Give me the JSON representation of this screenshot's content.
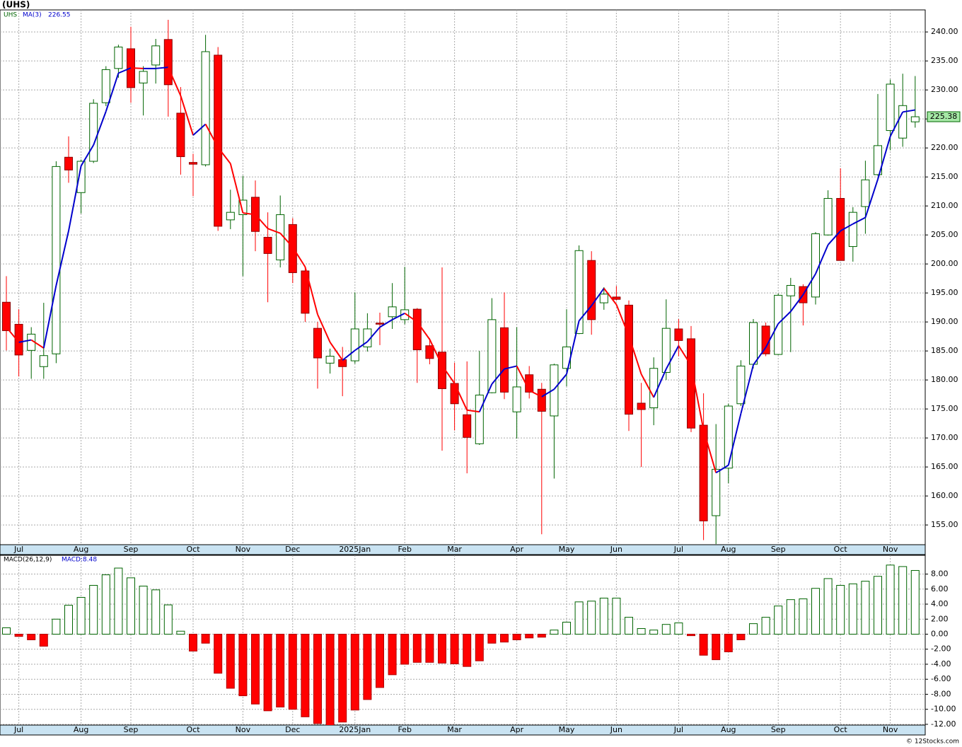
{
  "chart_data": [
    {
      "type": "candlestick",
      "title": "(UHS)",
      "categories": [
        null,
        "Jul",
        null,
        null,
        null,
        null,
        "Aug",
        null,
        null,
        null,
        "Sep",
        null,
        null,
        null,
        null,
        "Oct",
        null,
        null,
        null,
        "Nov",
        null,
        null,
        null,
        "Dec",
        null,
        null,
        null,
        null,
        "2025Jan",
        null,
        null,
        null,
        "Feb",
        null,
        null,
        null,
        "Mar",
        null,
        null,
        null,
        null,
        "Apr",
        null,
        null,
        null,
        "May",
        null,
        null,
        null,
        "Jun",
        null,
        null,
        null,
        null,
        "Jul",
        null,
        null,
        null,
        "Aug",
        null,
        null,
        null,
        "Sep",
        null,
        null,
        null,
        null,
        "Oct",
        null,
        null,
        null,
        "Nov",
        null,
        null
      ],
      "series": [
        {
          "name": "UHS",
          "up_color": "#006400",
          "down_color": "#ff0000",
          "open": [
            193.4,
            189.6,
            185.1,
            182.3,
            184.5,
            218.4,
            212.3,
            217.7,
            227.8,
            233.7,
            237.1,
            231.2,
            234.3,
            238.7,
            226,
            217.5,
            217.1,
            236,
            207.6,
            208.5,
            211.5,
            204.6,
            200.7,
            206.8,
            198.8,
            188.9,
            182.9,
            183.5,
            183.3,
            185.7,
            189.8,
            190.9,
            190.4,
            192.2,
            185.9,
            184.8,
            179.4,
            174,
            169,
            177.8,
            189,
            174.5,
            180.9,
            178.4,
            173.8,
            182,
            188,
            200.6,
            193.3,
            194.3,
            192.9,
            176,
            175.2,
            181.3,
            188.8,
            187.1,
            172.2,
            156.6,
            164.8,
            175.9,
            182.7,
            189.3,
            184.4,
            194.5,
            196.1,
            194.3,
            205,
            211.3,
            203,
            209.9,
            215.4,
            223,
            221.7,
            224.5
          ],
          "high": [
            197.9,
            192.2,
            189.1,
            193.3,
            217.7,
            222,
            218,
            228.4,
            234.1,
            237.8,
            240.9,
            234.1,
            238.8,
            242.1,
            230.5,
            219,
            239.5,
            237.4,
            212.8,
            215.2,
            214.4,
            208.9,
            211.8,
            207.9,
            199.5,
            190,
            185.4,
            185.7,
            195.1,
            191.5,
            191.6,
            196.7,
            199.5,
            192.4,
            187.2,
            199.4,
            183,
            183.2,
            185,
            194.1,
            195.1,
            189.1,
            182.4,
            179.5,
            182.8,
            192.2,
            203.2,
            202.2,
            196,
            196.2,
            193.7,
            179.5,
            183.9,
            193.9,
            190.5,
            189.3,
            177.7,
            172.4,
            175.9,
            183.4,
            190.5,
            189.9,
            194.9,
            197.6,
            196.5,
            205.5,
            212.7,
            216.5,
            209.8,
            217.8,
            229.3,
            231.8,
            232.8,
            232.4
          ],
          "low": [
            185.1,
            180.6,
            180.2,
            180.2,
            182.9,
            214,
            208.7,
            217.4,
            227.2,
            232.1,
            227.8,
            225.6,
            231.1,
            225.4,
            215.4,
            211.7,
            216.8,
            205.7,
            206,
            197.9,
            202.2,
            193.4,
            199.4,
            196.7,
            190,
            178.5,
            181.1,
            177.2,
            182.8,
            184.9,
            186,
            188.8,
            189.6,
            179.5,
            182.7,
            167.8,
            171.3,
            163.9,
            168.8,
            177.7,
            176.7,
            169.9,
            176.8,
            153.4,
            163,
            178.9,
            187.9,
            187.8,
            192.1,
            193.7,
            171.2,
            165,
            172.2,
            180,
            184.1,
            171,
            152.4,
            151.7,
            162.2,
            175.5,
            182,
            184.1,
            184.3,
            184.8,
            189.4,
            193,
            204.9,
            200.6,
            200.4,
            205.2,
            215.2,
            219.6,
            220.2,
            223.5
          ],
          "close": [
            188.5,
            184.3,
            187.9,
            184.2,
            216.8,
            216.2,
            217.7,
            227.7,
            233.5,
            237.4,
            230.4,
            233.2,
            237.6,
            230.9,
            218.5,
            217.2,
            236.6,
            206.5,
            208.9,
            211,
            205.6,
            201.8,
            208.5,
            198.5,
            191.5,
            183.8,
            184.1,
            182.3,
            188.8,
            188.8,
            189.7,
            192.6,
            192.1,
            185.2,
            183.7,
            178.5,
            175.9,
            170.1,
            177.4,
            190.4,
            177.9,
            178.8,
            177.9,
            174.6,
            182.6,
            185.7,
            202.3,
            190.4,
            194.8,
            193.9,
            174.1,
            174.9,
            182,
            188.9,
            186.8,
            171.7,
            155.7,
            164.6,
            175.5,
            182.4,
            189.9,
            184.5,
            194.6,
            196.3,
            193.3,
            205.2,
            211.3,
            200.6,
            208.9,
            214.5,
            220.4,
            231,
            227.3,
            225.38
          ]
        }
      ],
      "ma": {
        "name": "MA(3)",
        "up_color": "#0000cc",
        "down_color": "#ff0000",
        "values": [
          189.1,
          186.5,
          186.9,
          185.5,
          196.3,
          205.7,
          216.9,
          220.5,
          226.3,
          232.9,
          233.8,
          233.7,
          233.7,
          233.9,
          229,
          222.2,
          224.1,
          220.1,
          217.3,
          208.8,
          208.5,
          206.1,
          205.3,
          202.9,
          199.5,
          191.3,
          186.5,
          183.4,
          185.1,
          186.6,
          189.1,
          190.4,
          191.5,
          190,
          187,
          182.5,
          179.4,
          174.8,
          174.5,
          179.3,
          181.9,
          182.4,
          178.2,
          177.1,
          178.4,
          181,
          190.2,
          192.8,
          195.8,
          193,
          187.6,
          181,
          177,
          181.9,
          185.9,
          182.5,
          171.4,
          164,
          165.3,
          174.2,
          182.6,
          185.6,
          189.7,
          191.8,
          194.7,
          198.3,
          203.3,
          205.7,
          206.9,
          208,
          214.6,
          222,
          226.2,
          226.55
        ]
      },
      "ylim": [
        151.6,
        243.8
      ],
      "yticks": [
        {
          "value": 155,
          "label": "155.00"
        },
        {
          "value": 160,
          "label": "160.00"
        },
        {
          "value": 165,
          "label": "165.00"
        },
        {
          "value": 170,
          "label": "170.00"
        },
        {
          "value": 175,
          "label": "175.00"
        },
        {
          "value": 180,
          "label": "180.00"
        },
        {
          "value": 185,
          "label": "185.00"
        },
        {
          "value": 190,
          "label": "190.00"
        },
        {
          "value": 195,
          "label": "195.00"
        },
        {
          "value": 200,
          "label": "200.00"
        },
        {
          "value": 205,
          "label": "205.00"
        },
        {
          "value": 210,
          "label": "210.00"
        },
        {
          "value": 215,
          "label": "215.00"
        },
        {
          "value": 220,
          "label": "220.00"
        },
        {
          "value": 225,
          "label": "225.00"
        },
        {
          "value": 230,
          "label": "230.00"
        },
        {
          "value": 235,
          "label": "235.00"
        },
        {
          "value": 240,
          "label": "240.00"
        }
      ],
      "grid": true
    },
    {
      "type": "bar",
      "name": "MACD(26,12,9)",
      "last_label": "MACD:8.48",
      "up_color": "#006400",
      "down_color": "#ff0000",
      "categories": [
        null,
        "Jul",
        null,
        null,
        null,
        null,
        "Aug",
        null,
        null,
        null,
        "Sep",
        null,
        null,
        null,
        null,
        "Oct",
        null,
        null,
        null,
        "Nov",
        null,
        null,
        null,
        "Dec",
        null,
        null,
        null,
        null,
        "2025Jan",
        null,
        null,
        null,
        "Feb",
        null,
        null,
        null,
        "Mar",
        null,
        null,
        null,
        null,
        "Apr",
        null,
        null,
        null,
        "May",
        null,
        null,
        null,
        "Jun",
        null,
        null,
        null,
        null,
        "Jul",
        null,
        null,
        null,
        "Aug",
        null,
        null,
        null,
        "Sep",
        null,
        null,
        null,
        null,
        "Oct",
        null,
        null,
        null,
        "Nov",
        null,
        null
      ],
      "values": [
        0.85,
        -0.3,
        -0.75,
        -1.6,
        2,
        3.85,
        4.9,
        6.5,
        7.9,
        8.8,
        7.5,
        6.4,
        5.9,
        3.9,
        0.4,
        -2.25,
        -1.2,
        -5.2,
        -7.2,
        -8.2,
        -9.3,
        -10.2,
        -9.7,
        -10,
        -11,
        -11.9,
        -12.4,
        -11.7,
        -10.1,
        -8.7,
        -7.1,
        -5.4,
        -4,
        -3.75,
        -3.75,
        -3.85,
        -3.95,
        -4.3,
        -3.55,
        -1.2,
        -1.05,
        -0.75,
        -0.5,
        -0.4,
        0.55,
        1.6,
        4.3,
        4.4,
        4.8,
        4.8,
        2.25,
        0.75,
        0.55,
        1.3,
        1.5,
        -0.2,
        -2.8,
        -3.4,
        -2.35,
        -0.75,
        1.4,
        2.25,
        3.75,
        4.6,
        4.7,
        6.1,
        7.4,
        6.5,
        6.7,
        7.05,
        7.7,
        9.2,
        9,
        8.48
      ],
      "ylim": [
        -12.1,
        10.5
      ],
      "yticks": [
        {
          "value": -12,
          "label": "-12.00"
        },
        {
          "value": -10,
          "label": "-10.00"
        },
        {
          "value": -8,
          "label": "-8.00"
        },
        {
          "value": -6,
          "label": "-6.00"
        },
        {
          "value": -4,
          "label": "-4.00"
        },
        {
          "value": -2,
          "label": "-2.00"
        },
        {
          "value": 0,
          "label": "0.00"
        },
        {
          "value": 2,
          "label": "2.00"
        },
        {
          "value": 4,
          "label": "4.00"
        },
        {
          "value": 6,
          "label": "6.00"
        },
        {
          "value": 8,
          "label": "8.00"
        }
      ],
      "grid": true
    }
  ],
  "watermark": "© 12Stocks.com"
}
